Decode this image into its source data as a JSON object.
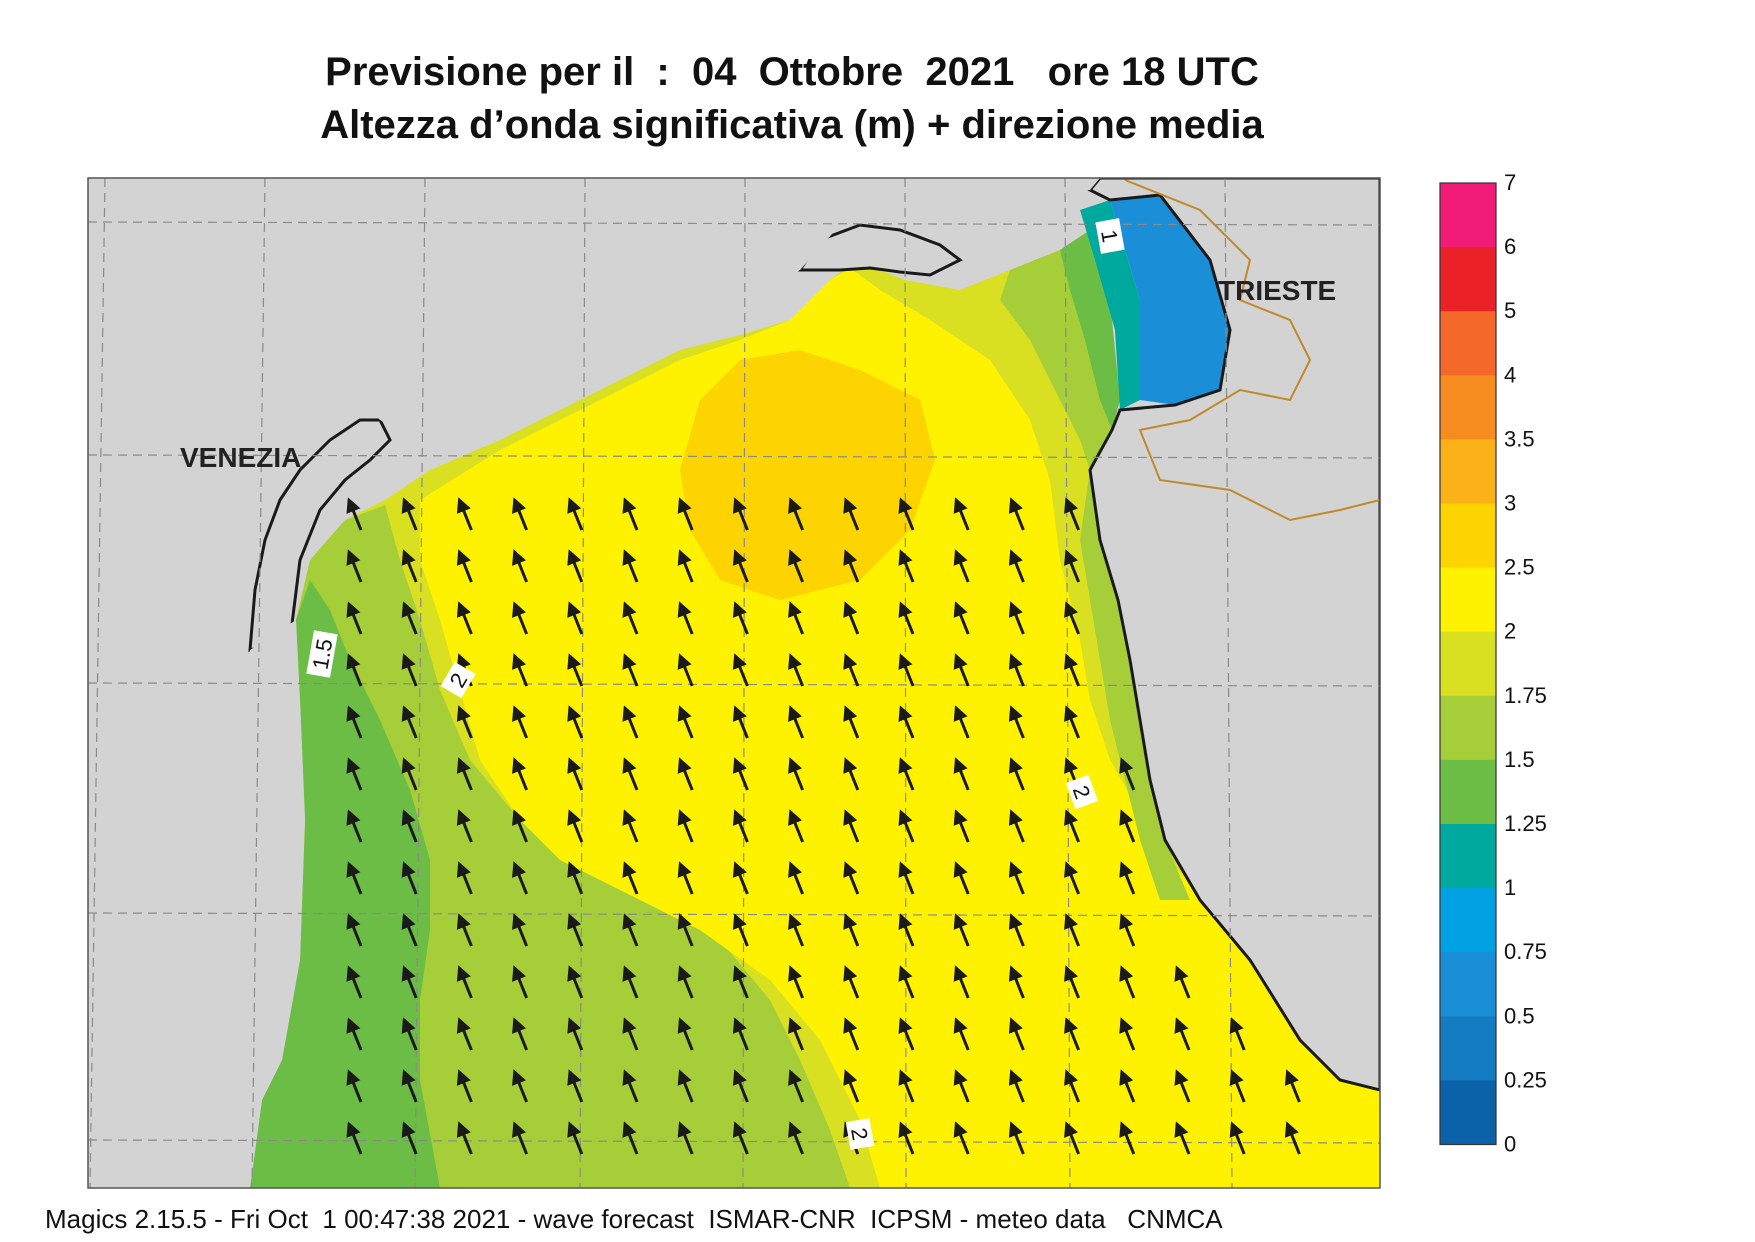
{
  "title": {
    "line1": "Previsione per il  :  04  Ottobre  2021   ore 18 UTC",
    "line2": "Altezza d’onda significativa (m) + direzione media"
  },
  "cities": [
    {
      "name": "VENEZIA"
    },
    {
      "name": "TRIESTE"
    }
  ],
  "contour_labels": [
    "1",
    "1.5",
    "2",
    "2",
    "2"
  ],
  "colorbar": {
    "labels": [
      "7",
      "6",
      "5",
      "4",
      "3.5",
      "3",
      "2.5",
      "2",
      "1.75",
      "1.5",
      "1.25",
      "1",
      "0.75",
      "0.5",
      "0.25",
      "0"
    ],
    "colors": [
      "#f01c78",
      "#ea2127",
      "#f4682a",
      "#f68b1f",
      "#fbb117",
      "#fdd300",
      "#fff200",
      "#d9e021",
      "#a6ce39",
      "#6cbd45",
      "#00a99d",
      "#00a2e3",
      "#1a8fd8",
      "#137bc1",
      "#0b62a8"
    ]
  },
  "colors": {
    "land": "#d3d3d3",
    "coast": "#1a1a1a",
    "grid": "#8a8a8a",
    "border": "#c08a2a",
    "arrow": "#1a1a1a"
  },
  "arrow_direction": "north-west",
  "footer": "Magics 2.15.5 - Fri Oct  1 00:47:38 2021 - wave forecast  ISMAR-CNR  ICPSM - meteo data   CNMCA"
}
